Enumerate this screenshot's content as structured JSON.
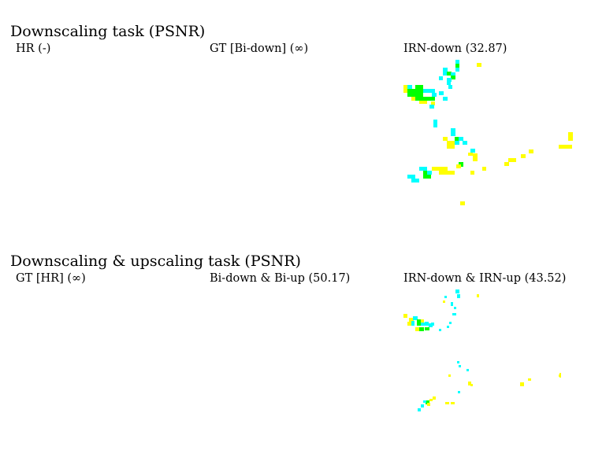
{
  "sections": [
    {
      "title": "Downscaling task (PSNR)",
      "panels": [
        {
          "label": "HR (-)"
        },
        {
          "label": "GT [Bi-down] (∞)"
        },
        {
          "label": "IRN-down (32.87)"
        }
      ]
    },
    {
      "title": "Downscaling & upscaling task (PSNR)",
      "panels": [
        {
          "label": "GT [HR] (∞)"
        },
        {
          "label": "Bi-down & Bi-up (50.17)"
        },
        {
          "label": "IRN-down & IRN-up (43.52)"
        }
      ]
    }
  ],
  "colors": {
    "background": "#ffffff",
    "cyan": "#00ffff",
    "green": "#00ff00",
    "yellow": "#ffff00"
  }
}
